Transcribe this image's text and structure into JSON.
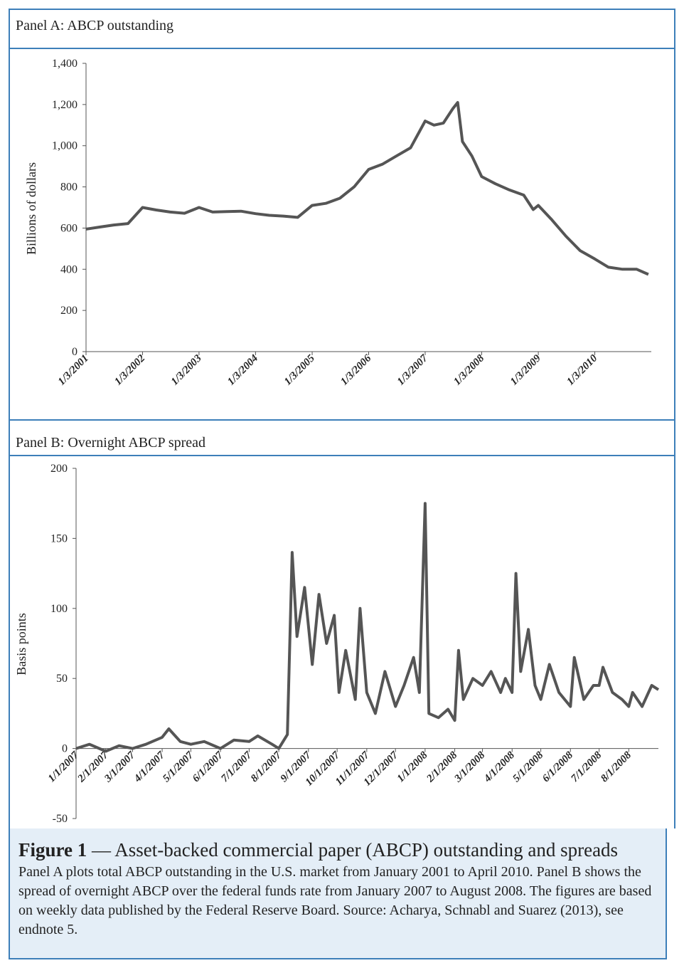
{
  "chart_data": [
    {
      "type": "line",
      "panel_title": "Panel A: ABCP outstanding",
      "ylabel": "Billions of dollars",
      "color": "#555555",
      "x": [
        "2001-01-03",
        "2001-04-01",
        "2001-07-01",
        "2001-10-01",
        "2002-01-03",
        "2002-04-01",
        "2002-07-01",
        "2002-10-01",
        "2003-01-03",
        "2003-04-01",
        "2003-07-01",
        "2003-10-01",
        "2004-01-03",
        "2004-04-01",
        "2004-07-01",
        "2004-10-01",
        "2005-01-03",
        "2005-04-01",
        "2005-07-01",
        "2005-10-01",
        "2006-01-03",
        "2006-04-01",
        "2006-07-01",
        "2006-10-01",
        "2007-01-03",
        "2007-03-01",
        "2007-05-01",
        "2007-07-01",
        "2007-08-01",
        "2007-09-01",
        "2007-11-01",
        "2008-01-03",
        "2008-04-01",
        "2008-07-01",
        "2008-10-01",
        "2008-12-01",
        "2009-01-03",
        "2009-04-01",
        "2009-07-01",
        "2009-10-01",
        "2010-01-03",
        "2010-04-01",
        "2010-07-01",
        "2010-10-01",
        "2010-12-15"
      ],
      "values": [
        595,
        605,
        615,
        622,
        700,
        688,
        678,
        672,
        700,
        678,
        680,
        682,
        670,
        662,
        658,
        652,
        710,
        720,
        745,
        800,
        885,
        910,
        950,
        990,
        1120,
        1100,
        1110,
        1180,
        1210,
        1020,
        950,
        850,
        815,
        785,
        760,
        690,
        710,
        640,
        560,
        490,
        450,
        410,
        400,
        400,
        375
      ],
      "xlim": [
        "2001-01-03",
        "2011-01-03"
      ],
      "xticks": [
        {
          "value": "2001-01-03",
          "label": "1/3/2001"
        },
        {
          "value": "2002-01-03",
          "label": "1/3/2002"
        },
        {
          "value": "2003-01-03",
          "label": "1/3/2003"
        },
        {
          "value": "2004-01-03",
          "label": "1/3/2004"
        },
        {
          "value": "2005-01-03",
          "label": "1/3/2005"
        },
        {
          "value": "2006-01-03",
          "label": "1/3/2006"
        },
        {
          "value": "2007-01-03",
          "label": "1/3/2007"
        },
        {
          "value": "2008-01-03",
          "label": "1/3/2008"
        },
        {
          "value": "2009-01-03",
          "label": "1/3/2009"
        },
        {
          "value": "2010-01-03",
          "label": "1/3/2010"
        }
      ],
      "ylim": [
        0,
        1400
      ],
      "yticks": [
        0,
        200,
        400,
        600,
        800,
        {
          "value": 1000,
          "label": "1,000"
        },
        {
          "value": 1200,
          "label": "1,200"
        },
        {
          "value": 1400,
          "label": "1,400"
        }
      ]
    },
    {
      "type": "line",
      "panel_title": "Panel B: Overnight ABCP spread",
      "ylabel": "Basis points",
      "color": "#555555",
      "x": [
        "2007-01-01",
        "2007-01-15",
        "2007-02-01",
        "2007-02-15",
        "2007-03-01",
        "2007-03-15",
        "2007-04-01",
        "2007-04-08",
        "2007-04-20",
        "2007-05-01",
        "2007-05-15",
        "2007-06-01",
        "2007-06-15",
        "2007-07-01",
        "2007-07-10",
        "2007-07-25",
        "2007-08-01",
        "2007-08-10",
        "2007-08-15",
        "2007-08-20",
        "2007-08-28",
        "2007-09-05",
        "2007-09-12",
        "2007-09-20",
        "2007-09-28",
        "2007-10-03",
        "2007-10-10",
        "2007-10-20",
        "2007-10-25",
        "2007-11-01",
        "2007-11-10",
        "2007-11-20",
        "2007-12-01",
        "2007-12-10",
        "2007-12-20",
        "2007-12-26",
        "2008-01-01",
        "2008-01-05",
        "2008-01-15",
        "2008-01-25",
        "2008-02-01",
        "2008-02-05",
        "2008-02-10",
        "2008-02-20",
        "2008-03-01",
        "2008-03-10",
        "2008-03-20",
        "2008-03-25",
        "2008-04-01",
        "2008-04-05",
        "2008-04-10",
        "2008-04-18",
        "2008-04-25",
        "2008-05-01",
        "2008-05-10",
        "2008-05-20",
        "2008-06-01",
        "2008-06-05",
        "2008-06-15",
        "2008-06-25",
        "2008-07-01",
        "2008-07-05",
        "2008-07-15",
        "2008-07-25",
        "2008-08-01",
        "2008-08-05",
        "2008-08-15",
        "2008-08-25",
        "2008-09-01"
      ],
      "values": [
        0,
        3,
        -2,
        2,
        0,
        3,
        8,
        14,
        5,
        3,
        5,
        0,
        6,
        5,
        9,
        3,
        0,
        10,
        140,
        80,
        115,
        60,
        110,
        75,
        95,
        40,
        70,
        35,
        100,
        40,
        25,
        55,
        30,
        45,
        65,
        40,
        175,
        25,
        22,
        28,
        20,
        70,
        35,
        50,
        45,
        55,
        40,
        50,
        40,
        125,
        55,
        85,
        45,
        35,
        60,
        40,
        30,
        65,
        35,
        45,
        45,
        58,
        40,
        35,
        30,
        40,
        30,
        45,
        42
      ],
      "xlim": [
        "2007-01-01",
        "2008-09-01"
      ],
      "xticks": [
        {
          "value": "2007-01-01",
          "label": "1/1/2007"
        },
        {
          "value": "2007-02-01",
          "label": "2/1/2007"
        },
        {
          "value": "2007-03-01",
          "label": "3/1/2007"
        },
        {
          "value": "2007-04-01",
          "label": "4/1/2007"
        },
        {
          "value": "2007-05-01",
          "label": "5/1/2007"
        },
        {
          "value": "2007-06-01",
          "label": "6/1/2007"
        },
        {
          "value": "2007-07-01",
          "label": "7/1/2007"
        },
        {
          "value": "2007-08-01",
          "label": "8/1/2007"
        },
        {
          "value": "2007-09-01",
          "label": "9/1/2007"
        },
        {
          "value": "2007-10-01",
          "label": "10/1/2007"
        },
        {
          "value": "2007-11-01",
          "label": "11/1/2007"
        },
        {
          "value": "2007-12-01",
          "label": "12/1/2007"
        },
        {
          "value": "2008-01-01",
          "label": "1/1/2008"
        },
        {
          "value": "2008-02-01",
          "label": "2/1/2008"
        },
        {
          "value": "2008-03-01",
          "label": "3/1/2008"
        },
        {
          "value": "2008-04-01",
          "label": "4/1/2008"
        },
        {
          "value": "2008-05-01",
          "label": "5/1/2008"
        },
        {
          "value": "2008-06-01",
          "label": "6/1/2008"
        },
        {
          "value": "2008-07-01",
          "label": "7/1/2008"
        },
        {
          "value": "2008-08-01",
          "label": "8/1/2008"
        }
      ],
      "ylim": [
        -50,
        200
      ],
      "yticks": [
        -50,
        0,
        50,
        100,
        150,
        200
      ]
    }
  ],
  "caption": {
    "label": "Figure 1",
    "title": "— Asset-backed commercial paper (ABCP) outstanding and spreads",
    "body": "Panel A plots total ABCP outstanding in the U.S. market from January 2001 to April 2010. Panel B shows the spread of overnight ABCP over the federal funds rate from January 2007 to August 2008. The figures are based on weekly data published by the Federal Reserve Board. Source: Acharya, Schnabl and Suarez (2013), see endnote 5."
  }
}
